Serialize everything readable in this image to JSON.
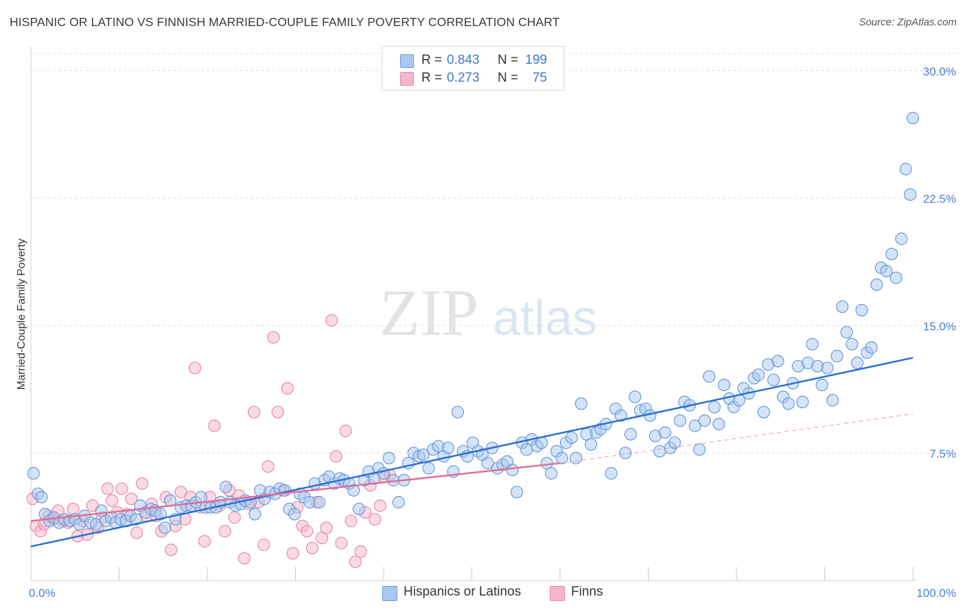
{
  "title": "HISPANIC OR LATINO VS FINNISH MARRIED-COUPLE FAMILY POVERTY CORRELATION CHART",
  "source": "Source: ZipAtlas.com",
  "watermark": {
    "zip": "ZIP",
    "atlas": "atlas"
  },
  "legend": {
    "rows": [
      {
        "r_label": "R =",
        "r_value": "0.843",
        "n_label": "N =",
        "n_value": "199"
      },
      {
        "r_label": "R =",
        "r_value": "0.273",
        "n_label": "N =",
        "n_value": "75"
      }
    ]
  },
  "bottom_legend": {
    "blue": "Hispanics or Latinos",
    "pink": "Finns"
  },
  "colors": {
    "blue_fill": "#a9c7f0",
    "blue_stroke": "#6a9ad9",
    "blue_line": "#2c6fd1",
    "pink_fill": "#f5b7c9",
    "pink_stroke": "#e68aa5",
    "pink_line": "#e06d95",
    "grid": "#dddddd",
    "tick_label": "#4a7fd1"
  },
  "chart_data": {
    "type": "scatter",
    "title": "HISPANIC OR LATINO VS FINNISH MARRIED-COUPLE FAMILY POVERTY CORRELATION CHART",
    "xlabel": "",
    "ylabel": "Married-Couple Family Poverty",
    "xlim": [
      0,
      100
    ],
    "ylim": [
      0,
      31
    ],
    "y_ticks": [
      {
        "value": 7.5,
        "label": "7.5%"
      },
      {
        "value": 15,
        "label": "15.0%"
      },
      {
        "value": 22.5,
        "label": "22.5%"
      },
      {
        "value": 30,
        "label": "30.0%"
      }
    ],
    "x_tick_labels": {
      "min": "0.0%",
      "max": "100.0%"
    },
    "series": [
      {
        "name": "Hispanics or Latinos",
        "r": 0.843,
        "n": 199,
        "trend": {
          "x0": 0,
          "y0": 2.0,
          "x1": 100,
          "y1": 13.1
        },
        "points": [
          [
            0.3,
            6.3
          ],
          [
            0.8,
            5.1
          ],
          [
            1.2,
            4.9
          ],
          [
            1.6,
            3.9
          ],
          [
            2.1,
            3.5
          ],
          [
            2.6,
            3.7
          ],
          [
            3.2,
            3.4
          ],
          [
            3.8,
            3.6
          ],
          [
            4.4,
            3.5
          ],
          [
            5.0,
            3.6
          ],
          [
            5.5,
            3.3
          ],
          [
            6.1,
            3.8
          ],
          [
            6.8,
            3.4
          ],
          [
            7.4,
            3.3
          ],
          [
            8.0,
            4.1
          ],
          [
            8.5,
            3.5
          ],
          [
            9.1,
            3.7
          ],
          [
            9.6,
            3.4
          ],
          [
            10.2,
            3.6
          ],
          [
            10.8,
            3.5
          ],
          [
            11.3,
            3.8
          ],
          [
            11.9,
            3.6
          ],
          [
            12.4,
            4.4
          ],
          [
            13.0,
            4.0
          ],
          [
            13.6,
            4.2
          ],
          [
            14.1,
            4.1
          ],
          [
            14.7,
            3.9
          ],
          [
            15.2,
            3.1
          ],
          [
            15.8,
            4.7
          ],
          [
            16.4,
            3.6
          ],
          [
            17.0,
            4.3
          ],
          [
            17.6,
            4.4
          ],
          [
            18.2,
            4.4
          ],
          [
            18.7,
            4.6
          ],
          [
            19.3,
            4.9
          ],
          [
            19.8,
            4.3
          ],
          [
            20.4,
            4.3
          ],
          [
            21.0,
            4.3
          ],
          [
            21.5,
            4.6
          ],
          [
            22.1,
            5.5
          ],
          [
            22.6,
            4.6
          ],
          [
            23.2,
            4.4
          ],
          [
            23.8,
            4.5
          ],
          [
            24.3,
            4.7
          ],
          [
            24.9,
            4.6
          ],
          [
            25.4,
            3.9
          ],
          [
            26.0,
            5.3
          ],
          [
            26.5,
            4.8
          ],
          [
            27.1,
            5.2
          ],
          [
            27.7,
            5.1
          ],
          [
            28.2,
            5.4
          ],
          [
            28.8,
            5.3
          ],
          [
            29.3,
            4.2
          ],
          [
            29.9,
            3.9
          ],
          [
            30.5,
            5.1
          ],
          [
            31.0,
            4.9
          ],
          [
            31.6,
            4.6
          ],
          [
            32.2,
            5.7
          ],
          [
            32.7,
            4.6
          ],
          [
            33.3,
            5.9
          ],
          [
            33.8,
            6.1
          ],
          [
            34.4,
            5.7
          ],
          [
            35.0,
            6.0
          ],
          [
            35.5,
            5.9
          ],
          [
            36.1,
            5.7
          ],
          [
            36.6,
            5.3
          ],
          [
            37.2,
            4.2
          ],
          [
            37.8,
            5.9
          ],
          [
            38.3,
            6.4
          ],
          [
            38.9,
            6.0
          ],
          [
            39.4,
            6.6
          ],
          [
            40.0,
            6.3
          ],
          [
            40.6,
            7.2
          ],
          [
            41.1,
            5.9
          ],
          [
            41.7,
            4.6
          ],
          [
            42.3,
            5.9
          ],
          [
            42.8,
            6.9
          ],
          [
            43.4,
            7.5
          ],
          [
            44.0,
            7.3
          ],
          [
            44.5,
            7.4
          ],
          [
            45.1,
            6.6
          ],
          [
            45.6,
            7.7
          ],
          [
            46.2,
            7.9
          ],
          [
            46.8,
            7.3
          ],
          [
            47.3,
            7.8
          ],
          [
            47.9,
            6.4
          ],
          [
            48.4,
            9.9
          ],
          [
            49.0,
            7.6
          ],
          [
            49.5,
            7.3
          ],
          [
            50.1,
            8.1
          ],
          [
            50.7,
            7.6
          ],
          [
            51.2,
            7.4
          ],
          [
            51.8,
            6.9
          ],
          [
            52.3,
            7.8
          ],
          [
            52.9,
            6.6
          ],
          [
            53.5,
            6.8
          ],
          [
            54.0,
            7.0
          ],
          [
            54.6,
            6.5
          ],
          [
            55.1,
            5.2
          ],
          [
            55.7,
            8.1
          ],
          [
            56.2,
            7.7
          ],
          [
            56.8,
            8.3
          ],
          [
            57.4,
            7.9
          ],
          [
            57.9,
            8.1
          ],
          [
            58.5,
            6.9
          ],
          [
            59.0,
            6.3
          ],
          [
            59.6,
            7.6
          ],
          [
            60.2,
            7.2
          ],
          [
            60.7,
            8.1
          ],
          [
            61.3,
            8.4
          ],
          [
            61.8,
            7.2
          ],
          [
            62.4,
            10.4
          ],
          [
            63.0,
            8.6
          ],
          [
            63.5,
            8.0
          ],
          [
            64.1,
            8.7
          ],
          [
            64.6,
            8.9
          ],
          [
            65.2,
            9.2
          ],
          [
            65.8,
            6.3
          ],
          [
            66.3,
            10.1
          ],
          [
            66.9,
            9.7
          ],
          [
            67.4,
            7.5
          ],
          [
            68.0,
            8.6
          ],
          [
            68.5,
            10.8
          ],
          [
            69.1,
            10.0
          ],
          [
            69.7,
            10.1
          ],
          [
            70.2,
            9.7
          ],
          [
            70.8,
            8.5
          ],
          [
            71.3,
            7.6
          ],
          [
            71.9,
            8.7
          ],
          [
            72.5,
            7.8
          ],
          [
            73.0,
            8.1
          ],
          [
            73.6,
            9.4
          ],
          [
            74.1,
            10.5
          ],
          [
            74.7,
            10.3
          ],
          [
            75.3,
            9.1
          ],
          [
            75.8,
            7.7
          ],
          [
            76.4,
            9.4
          ],
          [
            76.9,
            12.0
          ],
          [
            77.5,
            10.2
          ],
          [
            78.0,
            9.2
          ],
          [
            78.6,
            11.5
          ],
          [
            79.2,
            10.7
          ],
          [
            79.7,
            10.2
          ],
          [
            80.3,
            10.6
          ],
          [
            80.8,
            11.3
          ],
          [
            81.4,
            11.0
          ],
          [
            82.0,
            11.9
          ],
          [
            82.5,
            12.1
          ],
          [
            83.1,
            9.9
          ],
          [
            83.6,
            12.7
          ],
          [
            84.2,
            11.8
          ],
          [
            84.7,
            12.9
          ],
          [
            85.3,
            10.8
          ],
          [
            85.9,
            10.4
          ],
          [
            86.4,
            11.6
          ],
          [
            87.0,
            12.6
          ],
          [
            87.5,
            10.5
          ],
          [
            88.1,
            12.8
          ],
          [
            88.6,
            13.9
          ],
          [
            89.2,
            12.6
          ],
          [
            89.7,
            11.5
          ],
          [
            90.3,
            12.5
          ],
          [
            90.9,
            10.6
          ],
          [
            91.4,
            13.2
          ],
          [
            92.0,
            16.1
          ],
          [
            92.5,
            14.6
          ],
          [
            93.1,
            13.9
          ],
          [
            93.7,
            12.8
          ],
          [
            94.2,
            15.9
          ],
          [
            94.8,
            13.4
          ],
          [
            95.3,
            13.7
          ],
          [
            95.9,
            17.4
          ],
          [
            96.4,
            18.4
          ],
          [
            97.0,
            18.2
          ],
          [
            97.6,
            19.2
          ],
          [
            98.1,
            17.8
          ],
          [
            98.7,
            20.1
          ],
          [
            99.2,
            24.2
          ],
          [
            99.7,
            22.7
          ],
          [
            100.0,
            27.2
          ]
        ]
      },
      {
        "name": "Finns",
        "r": 0.273,
        "n": 75,
        "trend": {
          "x0": 0,
          "y0": 3.5,
          "x1": 60,
          "y1": 6.9
        },
        "trend_dashed": {
          "x0": 60,
          "y0": 6.9,
          "x1": 100,
          "y1": 9.8
        },
        "points": [
          [
            0.2,
            4.8
          ],
          [
            0.6,
            3.2
          ],
          [
            1.1,
            2.9
          ],
          [
            1.5,
            3.3
          ],
          [
            2.0,
            3.8
          ],
          [
            2.6,
            3.6
          ],
          [
            3.1,
            4.1
          ],
          [
            3.7,
            3.5
          ],
          [
            4.2,
            3.4
          ],
          [
            4.8,
            4.2
          ],
          [
            5.3,
            2.6
          ],
          [
            5.9,
            3.5
          ],
          [
            6.4,
            2.7
          ],
          [
            7.0,
            4.4
          ],
          [
            7.6,
            3.1
          ],
          [
            8.1,
            3.7
          ],
          [
            8.7,
            5.4
          ],
          [
            9.2,
            4.7
          ],
          [
            9.8,
            4.0
          ],
          [
            10.3,
            5.4
          ],
          [
            10.9,
            3.9
          ],
          [
            11.4,
            4.8
          ],
          [
            12.0,
            2.8
          ],
          [
            12.6,
            5.7
          ],
          [
            13.1,
            3.8
          ],
          [
            13.7,
            4.5
          ],
          [
            14.2,
            3.8
          ],
          [
            14.8,
            2.9
          ],
          [
            15.3,
            4.9
          ],
          [
            15.9,
            1.8
          ],
          [
            16.4,
            3.2
          ],
          [
            17.0,
            5.2
          ],
          [
            17.5,
            3.6
          ],
          [
            18.1,
            4.9
          ],
          [
            18.6,
            12.5
          ],
          [
            19.2,
            4.3
          ],
          [
            19.7,
            2.3
          ],
          [
            20.3,
            4.9
          ],
          [
            20.8,
            9.1
          ],
          [
            21.4,
            4.4
          ],
          [
            22.0,
            2.9
          ],
          [
            22.5,
            5.3
          ],
          [
            23.1,
            3.7
          ],
          [
            23.6,
            5.0
          ],
          [
            24.2,
            1.3
          ],
          [
            24.7,
            4.5
          ],
          [
            25.3,
            9.9
          ],
          [
            25.8,
            4.6
          ],
          [
            26.4,
            2.1
          ],
          [
            26.9,
            6.7
          ],
          [
            27.5,
            14.3
          ],
          [
            28.0,
            9.9
          ],
          [
            28.6,
            5.3
          ],
          [
            29.1,
            11.3
          ],
          [
            29.7,
            1.6
          ],
          [
            30.2,
            4.3
          ],
          [
            30.8,
            3.2
          ],
          [
            31.3,
            2.9
          ],
          [
            31.9,
            1.9
          ],
          [
            32.4,
            4.6
          ],
          [
            33.0,
            2.5
          ],
          [
            33.5,
            3.1
          ],
          [
            34.1,
            15.3
          ],
          [
            34.6,
            7.3
          ],
          [
            35.2,
            2.2
          ],
          [
            35.7,
            8.8
          ],
          [
            36.3,
            3.5
          ],
          [
            36.8,
            1.1
          ],
          [
            37.4,
            1.7
          ],
          [
            37.9,
            4.0
          ],
          [
            38.5,
            5.6
          ],
          [
            39.0,
            3.6
          ],
          [
            39.6,
            4.4
          ],
          [
            40.1,
            6.1
          ],
          [
            40.7,
            6.2
          ]
        ]
      }
    ]
  }
}
